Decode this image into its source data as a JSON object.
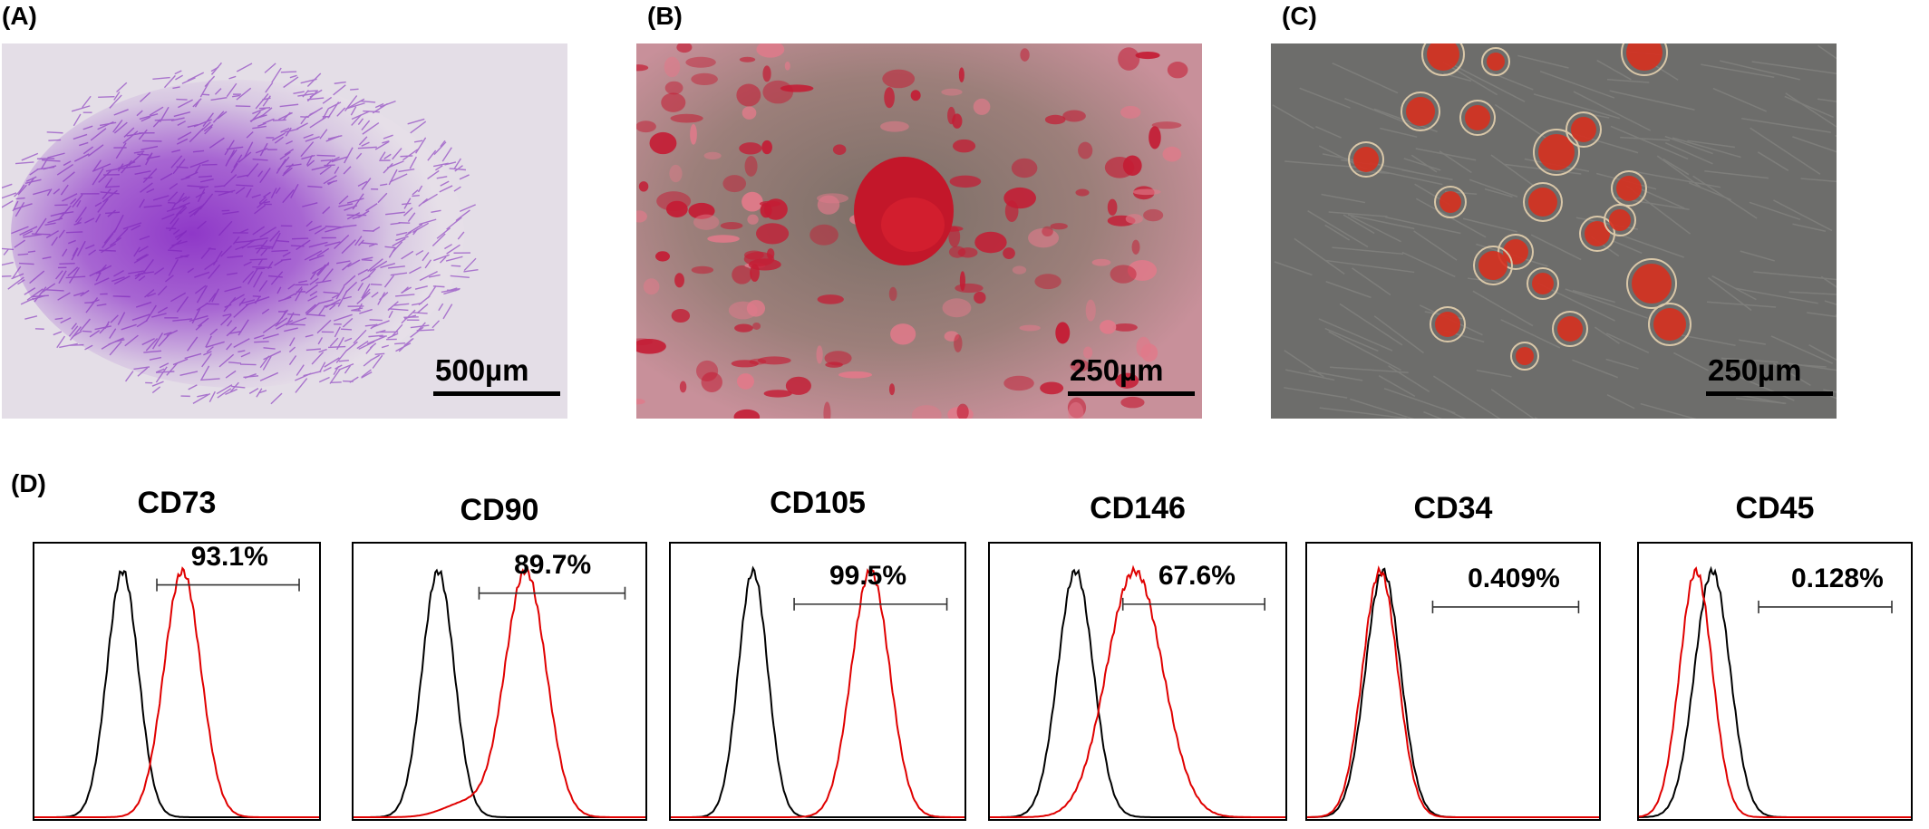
{
  "panels": {
    "a": {
      "label": "(A)",
      "scale": "500µm"
    },
    "b": {
      "label": "(B)",
      "scale": "250µm"
    },
    "c": {
      "label": "(C)",
      "scale": "250µm"
    },
    "d": {
      "label": "(D)"
    }
  },
  "chart_data": {
    "type": "area",
    "legend": "none",
    "series_colors": {
      "control": "#000000",
      "marker": "#e00000"
    },
    "histograms": [
      {
        "title": "CD73",
        "percent": "93.1%",
        "control_peak": 0.31,
        "marker_peak": 0.52,
        "control_width": 0.055,
        "marker_width": 0.065,
        "gate": [
          0.43,
          0.93
        ],
        "marker_hump": false
      },
      {
        "title": "CD90",
        "percent": "89.7%",
        "control_peak": 0.29,
        "marker_peak": 0.59,
        "control_width": 0.055,
        "marker_width": 0.07,
        "gate": [
          0.43,
          0.93
        ],
        "marker_hump": true
      },
      {
        "title": "CD105",
        "percent": "99.5%",
        "control_peak": 0.28,
        "marker_peak": 0.68,
        "control_width": 0.05,
        "marker_width": 0.065,
        "gate": [
          0.42,
          0.94
        ],
        "marker_hump": false
      },
      {
        "title": "CD146",
        "percent": "67.6%",
        "control_peak": 0.29,
        "marker_peak": 0.49,
        "control_width": 0.06,
        "marker_width": 0.095,
        "gate": [
          0.45,
          0.93
        ],
        "marker_hump": false
      },
      {
        "title": "CD34",
        "percent": "0.409%",
        "control_peak": 0.26,
        "marker_peak": 0.25,
        "control_width": 0.06,
        "marker_width": 0.06,
        "gate": [
          0.43,
          0.93
        ],
        "marker_hump": false
      },
      {
        "title": "CD45",
        "percent": "0.128%",
        "control_peak": 0.27,
        "marker_peak": 0.21,
        "control_width": 0.065,
        "marker_width": 0.06,
        "gate": [
          0.44,
          0.93
        ],
        "marker_hump": false
      }
    ]
  }
}
